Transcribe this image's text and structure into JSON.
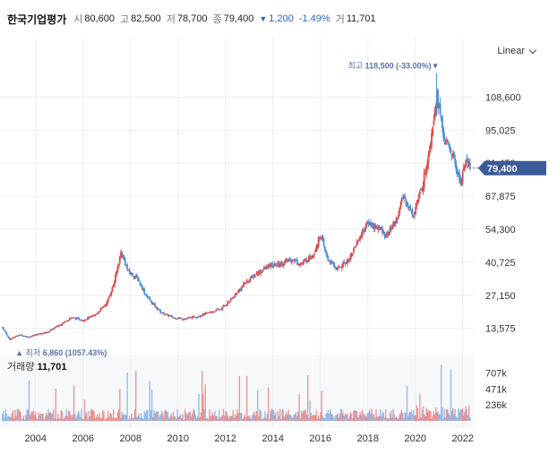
{
  "stock": {
    "name": "한국기업평가",
    "open_label": "시",
    "open": "80,600",
    "high_label": "고",
    "high": "82,500",
    "low_label": "저",
    "low": "78,700",
    "close_label": "종",
    "close": "79,400",
    "change_arrow": "▼",
    "change": "1,200",
    "change_pct": "-1.49%",
    "volume_label": "거",
    "volume": "11,701"
  },
  "scale_selector": {
    "label": "Linear"
  },
  "colors": {
    "up": "#e04a4a",
    "down": "#4a90d9",
    "price_tag": "#3d5a98",
    "annotation": "#5a72b0",
    "grid": "#eeeeee"
  },
  "volume_panel": {
    "label": "거래량",
    "value": "11,701"
  },
  "chart_data": {
    "type": "candlestick",
    "x_range": [
      2002.5,
      2022.5
    ],
    "x_ticks": [
      "2004",
      "2006",
      "2008",
      "2010",
      "2012",
      "2014",
      "2016",
      "2018",
      "2020",
      "2022"
    ],
    "x_tick_values": [
      2004,
      2006,
      2008,
      2010,
      2012,
      2014,
      2016,
      2018,
      2020,
      2022
    ],
    "y_range": [
      5000,
      122000
    ],
    "y_ticks": [
      "108,600",
      "95,025",
      "81,450",
      "67,875",
      "54,300",
      "40,725",
      "27,150",
      "13,575"
    ],
    "y_tick_values": [
      108600,
      95025,
      81450,
      67875,
      54300,
      40725,
      27150,
      13575
    ],
    "last_price": 79400,
    "last_price_label": "79,400",
    "max_annotation": {
      "x": 2020.9,
      "value": 118500,
      "prefix": "최고",
      "value_label": "118,500",
      "pct": "(-33.00%)",
      "marker": "▼"
    },
    "min_annotation": {
      "x": 2003.0,
      "value": 6860,
      "prefix": "최저",
      "value_label": "6,860",
      "pct": "(1057.43%)",
      "marker": "▲"
    },
    "price_path": [
      [
        2002.6,
        14000
      ],
      [
        2002.9,
        9000
      ],
      [
        2003.3,
        11000
      ],
      [
        2003.7,
        10000
      ],
      [
        2004.0,
        11000
      ],
      [
        2004.5,
        12000
      ],
      [
        2005.0,
        15000
      ],
      [
        2005.5,
        18000
      ],
      [
        2006.0,
        17000
      ],
      [
        2006.5,
        19000
      ],
      [
        2007.0,
        24000
      ],
      [
        2007.3,
        32000
      ],
      [
        2007.6,
        45000
      ],
      [
        2007.9,
        37000
      ],
      [
        2008.3,
        34000
      ],
      [
        2008.6,
        28000
      ],
      [
        2008.9,
        24000
      ],
      [
        2009.3,
        20000
      ],
      [
        2009.8,
        18000
      ],
      [
        2010.3,
        17500
      ],
      [
        2010.8,
        18500
      ],
      [
        2011.3,
        20000
      ],
      [
        2011.8,
        21500
      ],
      [
        2012.3,
        26000
      ],
      [
        2012.8,
        32000
      ],
      [
        2013.3,
        36000
      ],
      [
        2013.8,
        39000
      ],
      [
        2014.3,
        40000
      ],
      [
        2014.8,
        42000
      ],
      [
        2015.2,
        40000
      ],
      [
        2015.7,
        44000
      ],
      [
        2016.0,
        52000
      ],
      [
        2016.3,
        42000
      ],
      [
        2016.7,
        38000
      ],
      [
        2017.2,
        42000
      ],
      [
        2017.6,
        50000
      ],
      [
        2018.0,
        57000
      ],
      [
        2018.4,
        55000
      ],
      [
        2018.8,
        52000
      ],
      [
        2019.2,
        58000
      ],
      [
        2019.5,
        68000
      ],
      [
        2019.9,
        60000
      ],
      [
        2020.3,
        72000
      ],
      [
        2020.6,
        88000
      ],
      [
        2020.9,
        110000
      ],
      [
        2021.2,
        92000
      ],
      [
        2021.6,
        84000
      ],
      [
        2021.9,
        73000
      ],
      [
        2022.1,
        82000
      ],
      [
        2022.35,
        79400
      ]
    ],
    "volume_axis_ticks": [
      "707k",
      "471k",
      "236k"
    ],
    "volume_axis_values": [
      707000,
      471000,
      236000
    ],
    "volume_max": 900000
  }
}
